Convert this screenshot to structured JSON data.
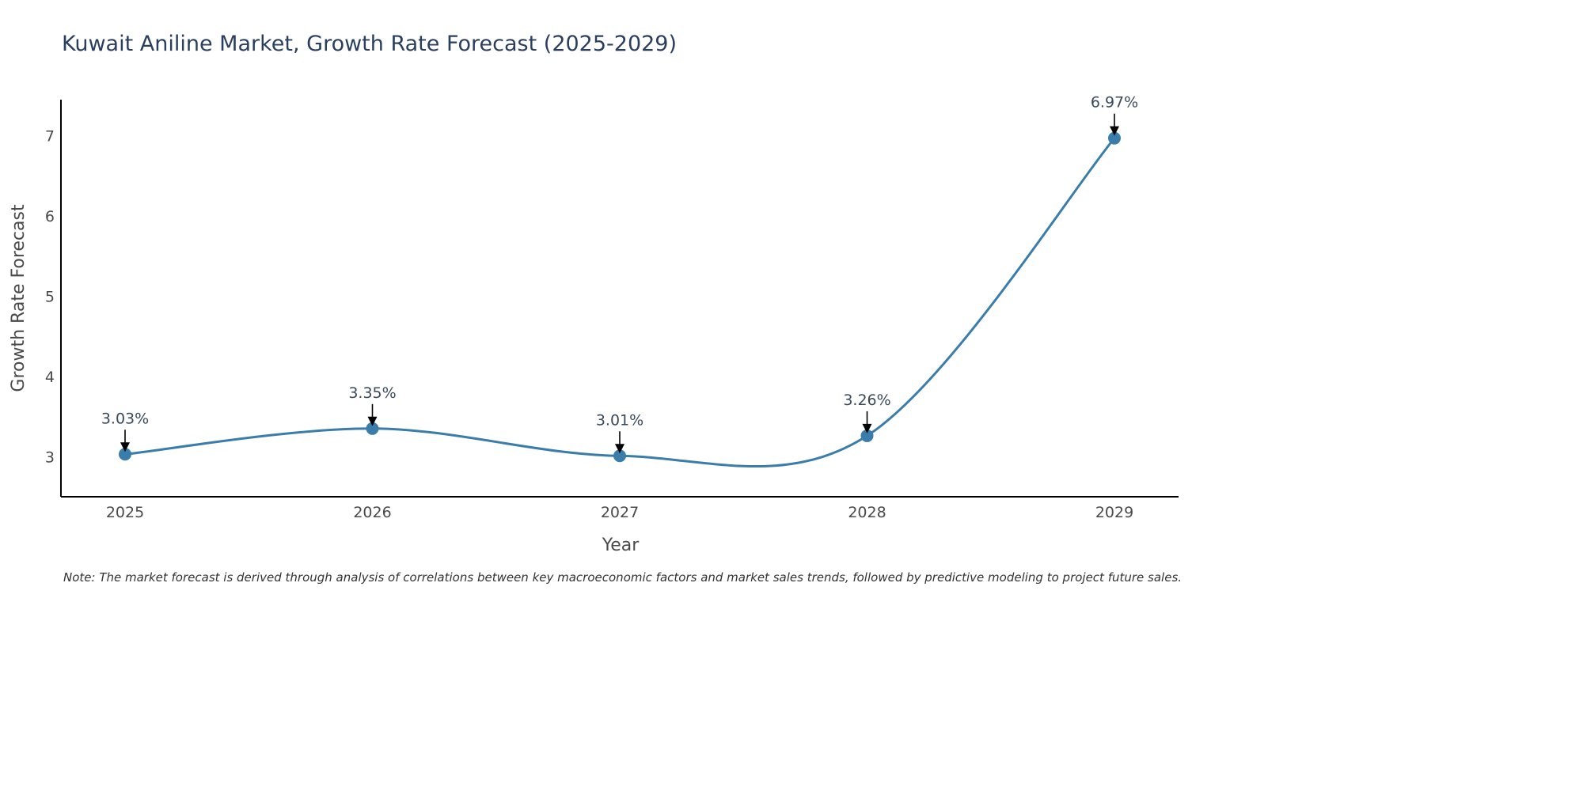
{
  "chart_data": {
    "type": "line",
    "title": "Kuwait Aniline Market, Growth Rate Forecast (2025-2029)",
    "xlabel": "Year",
    "ylabel": "Growth Rate Forecast",
    "categories": [
      "2025",
      "2026",
      "2027",
      "2028",
      "2029"
    ],
    "series": [
      {
        "name": "Growth Rate Forecast",
        "values": [
          3.03,
          3.35,
          3.01,
          3.26,
          6.97
        ],
        "labels": [
          "3.03%",
          "3.35%",
          "3.01%",
          "3.26%",
          "6.97%"
        ],
        "color": "#3a7dab"
      }
    ],
    "y_ticks": [
      "3",
      "4",
      "5",
      "6",
      "7"
    ],
    "ylim": [
      2.5,
      7.45
    ],
    "grid": false,
    "line_shape": "spline",
    "note": "Note: The market forecast is derived through analysis of correlations between key macroeconomic factors and market sales trends, followed by predictive modeling to project future sales."
  }
}
